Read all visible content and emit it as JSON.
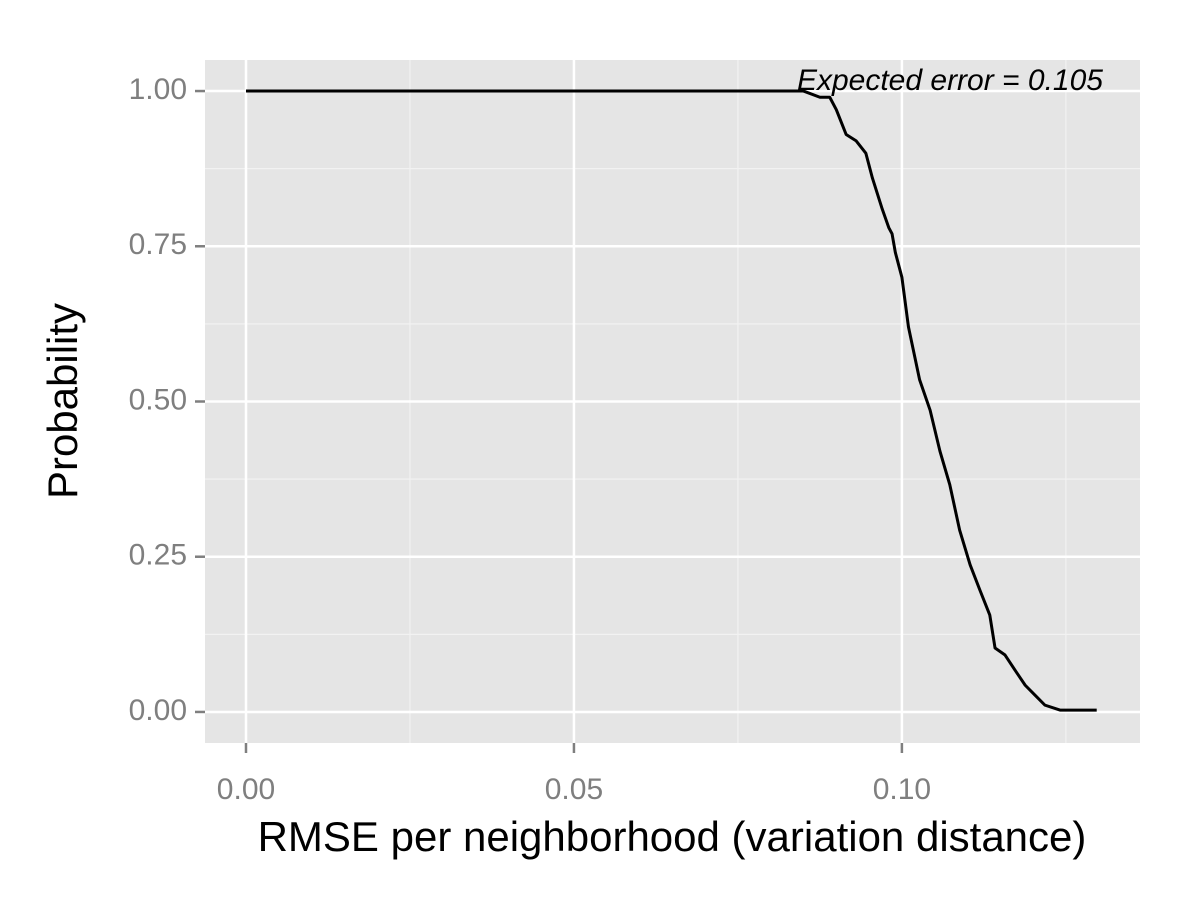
{
  "chart_data": {
    "type": "line",
    "annotation": "Expected error = 0.105",
    "x_label": "RMSE per neighborhood (variation distance)",
    "y_label": "Probability",
    "xlim": [
      -0.00625,
      0.1363
    ],
    "ylim": [
      -0.05,
      1.05
    ],
    "xticks": [
      {
        "value": 0,
        "label": "0.00"
      },
      {
        "value": 0.05,
        "label": "0.05"
      },
      {
        "value": 0.1,
        "label": "0.10"
      }
    ],
    "yticks": [
      {
        "value": 0,
        "label": "0.00"
      },
      0.25,
      {
        "value": 0.5,
        "label": "0.50"
      },
      0.75,
      {
        "value": 1,
        "label": "1.00"
      }
    ],
    "x_minor_ticks": [
      0.025,
      0.075,
      0.125
    ],
    "y_minor_ticks": [
      0.125,
      0.375,
      0.625,
      0.875
    ],
    "grid": true,
    "color": "#000000",
    "x": [
      0,
      0.085,
      0.0875,
      0.089,
      0.09,
      0.0915,
      0.093,
      0.0945,
      0.0955,
      0.097,
      0.098,
      0.0985,
      0.099,
      0.1,
      0.101,
      0.1027,
      0.1043,
      0.1058,
      0.1073,
      0.1088,
      0.1104,
      0.1119,
      0.1134,
      0.1142,
      0.1157,
      0.1172,
      0.1188,
      0.1203,
      0.1218,
      0.1241,
      0.1297
    ],
    "values": [
      1,
      1,
      0.99,
      0.99,
      0.97,
      0.93,
      0.92,
      0.9,
      0.86,
      0.81,
      0.78,
      0.77,
      0.74,
      0.7,
      0.62,
      0.535,
      0.486,
      0.42,
      0.366,
      0.293,
      0.237,
      0.196,
      0.156,
      0.103,
      0.092,
      0.068,
      0.043,
      0.027,
      0.011,
      0.003,
      0.003
    ]
  }
}
